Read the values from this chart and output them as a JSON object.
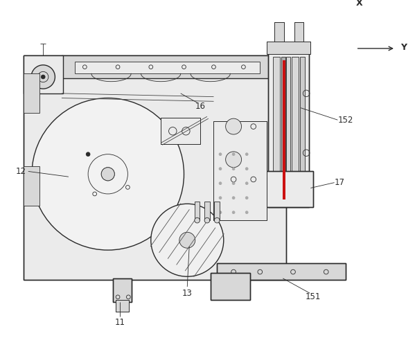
{
  "bg_color": "#ffffff",
  "fig_width": 5.99,
  "fig_height": 4.88,
  "dpi": 100,
  "line_color": "#2a2a2a",
  "label_fontsize": 8.5,
  "gray_fill": "#d8d8d8",
  "light_gray": "#ebebeb",
  "mid_gray": "#b0b0b0",
  "dark_gray": "#888888"
}
